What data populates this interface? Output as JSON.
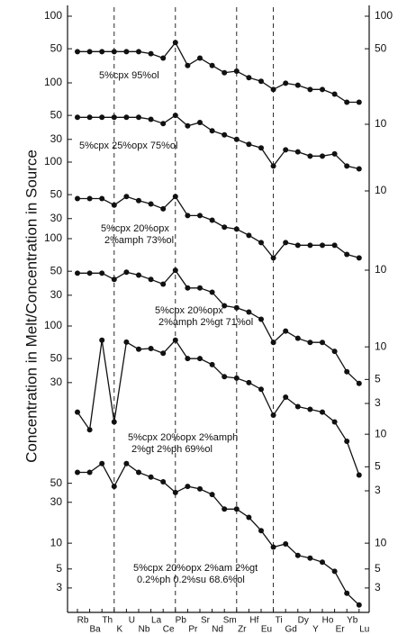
{
  "chart_data": [
    {
      "type": "line",
      "log_scale": true,
      "color": "#111",
      "annotation": [
        "5%cpx 95%ol"
      ],
      "ylim": [
        10,
        120
      ],
      "yticks": [
        100,
        50
      ],
      "y2lim": [
        10,
        120
      ],
      "y2ticks": [
        100,
        50,
        10
      ],
      "series": [
        {
          "values": [
            47,
            47,
            47,
            47,
            47,
            47,
            45,
            41,
            57,
            35,
            41,
            35,
            30,
            31,
            27,
            25,
            21,
            24,
            23,
            21,
            21,
            19,
            16,
            16
          ]
        }
      ]
    },
    {
      "type": "line",
      "log_scale": true,
      "color": "#111",
      "annotation": [
        "5%cpx 25%opx 75%ol"
      ],
      "ylim": [
        10,
        120
      ],
      "yticks": [
        100,
        50,
        30
      ],
      "y2lim": [
        10,
        120
      ],
      "y2ticks": [
        10
      ],
      "series": [
        {
          "values": [
            48,
            48,
            48,
            48,
            48,
            48,
            46,
            42,
            50,
            40,
            43,
            36,
            33,
            30,
            27,
            25,
            17,
            24,
            23,
            21,
            21,
            22,
            17,
            16
          ]
        }
      ]
    },
    {
      "type": "line",
      "log_scale": true,
      "color": "#111",
      "annotation": [
        "5%cpx 20%opx",
        "2%amph 73%ol"
      ],
      "ylim": [
        10,
        120
      ],
      "yticks": [
        100,
        50,
        30
      ],
      "y2lim": [
        10,
        120
      ],
      "y2ticks": [
        10
      ],
      "series": [
        {
          "values": [
            46,
            46,
            46,
            40,
            48,
            44,
            41,
            37,
            48,
            32,
            32,
            29,
            25,
            24,
            21,
            18,
            13,
            18,
            17,
            17,
            17,
            17,
            14,
            13
          ]
        }
      ]
    },
    {
      "type": "line",
      "log_scale": true,
      "color": "#111",
      "annotation": [
        "5%cpx 20%opx",
        "2%amph 2%gt 71%ol"
      ],
      "ylim": [
        3,
        120
      ],
      "yticks": [
        100,
        50,
        30
      ],
      "y2lim": [
        3,
        120
      ],
      "y2ticks": [
        10,
        5,
        3
      ],
      "series": [
        {
          "values": [
            48,
            48,
            48,
            42,
            49,
            46,
            42,
            38,
            51,
            35,
            35,
            32,
            24,
            23,
            21,
            18,
            11,
            14,
            12,
            11,
            11,
            9.1,
            5.9,
            4.6
          ]
        }
      ]
    },
    {
      "type": "line",
      "log_scale": true,
      "color": "#111",
      "annotation": [
        "5%cpx 20%opx 2%amph",
        "2%gt 2%ph 69%ol"
      ],
      "ylim": [
        3,
        120
      ],
      "yticks": [
        100,
        50,
        30
      ],
      "y2lim": [
        3,
        120
      ],
      "y2ticks": [
        10,
        5,
        3
      ],
      "series": [
        {
          "values": [
            16,
            11,
            74,
            13,
            71,
            61,
            62,
            56,
            74,
            50,
            50,
            44,
            34,
            33,
            30,
            26,
            15,
            22,
            18,
            17,
            16,
            13,
            8.6,
            4.2
          ]
        }
      ]
    },
    {
      "type": "line",
      "log_scale": true,
      "color": "#111",
      "annotation": [
        "5%cpx 20%opx 2%am 2%gt",
        "0.2%ph 0.2%su 68.6%ol"
      ],
      "ylabel": "Concentration in Melt/Concentration in Source",
      "categories": [
        "Rb",
        "Ba",
        "Th",
        "K",
        "U",
        "Nb",
        "La",
        "Ce",
        "Pb",
        "Pr",
        "Sr",
        "Nd",
        "Sm",
        "Zr",
        "Hf",
        "Eu",
        "Ti",
        "Gd",
        "Dy",
        "Y",
        "Ho",
        "Er",
        "Yb",
        "Lu"
      ],
      "ylim": [
        1.8,
        100
      ],
      "yticks": [
        50,
        30,
        10,
        5,
        3
      ],
      "y2lim": [
        1.8,
        100
      ],
      "y2ticks": [
        10,
        5,
        3
      ],
      "series": [
        {
          "values": [
            67,
            67,
            85,
            46,
            85,
            67,
            59,
            52,
            39,
            46,
            43,
            37,
            25,
            25,
            20,
            14,
            9,
            9.8,
            7.2,
            6.7,
            6,
            4.7,
            2.6,
            1.9
          ]
        }
      ]
    }
  ]
}
